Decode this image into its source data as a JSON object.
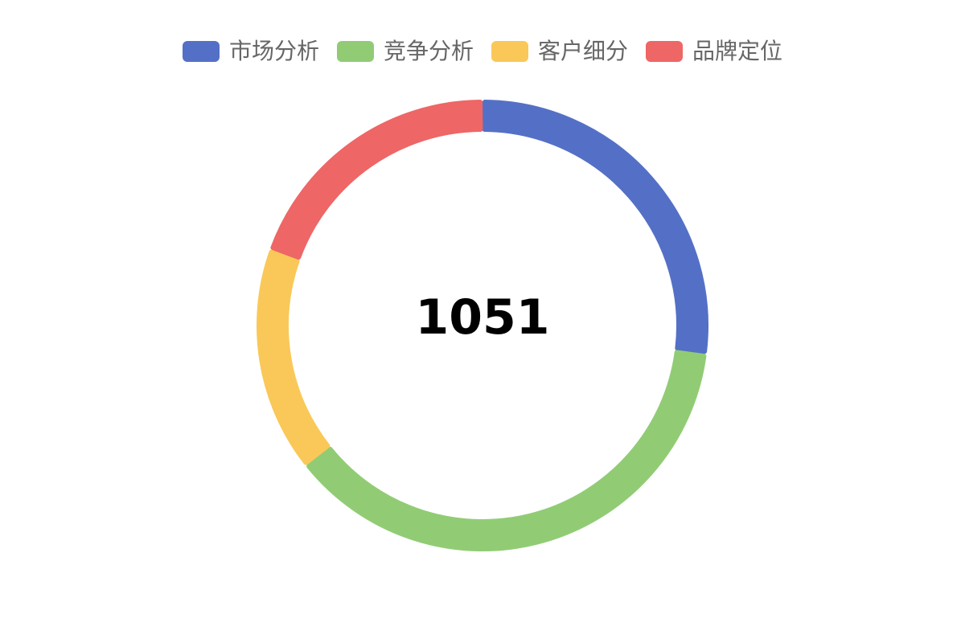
{
  "chart_data": {
    "type": "pie",
    "variant": "donut",
    "total": "1051",
    "categories": [
      "市场分析",
      "竞争分析",
      "客户细分",
      "品牌定位"
    ],
    "values": [
      284,
      392,
      170,
      205
    ],
    "colors": [
      "#5470c6",
      "#91cc75",
      "#fac858",
      "#ee6666"
    ],
    "legend_position": "top-center"
  }
}
